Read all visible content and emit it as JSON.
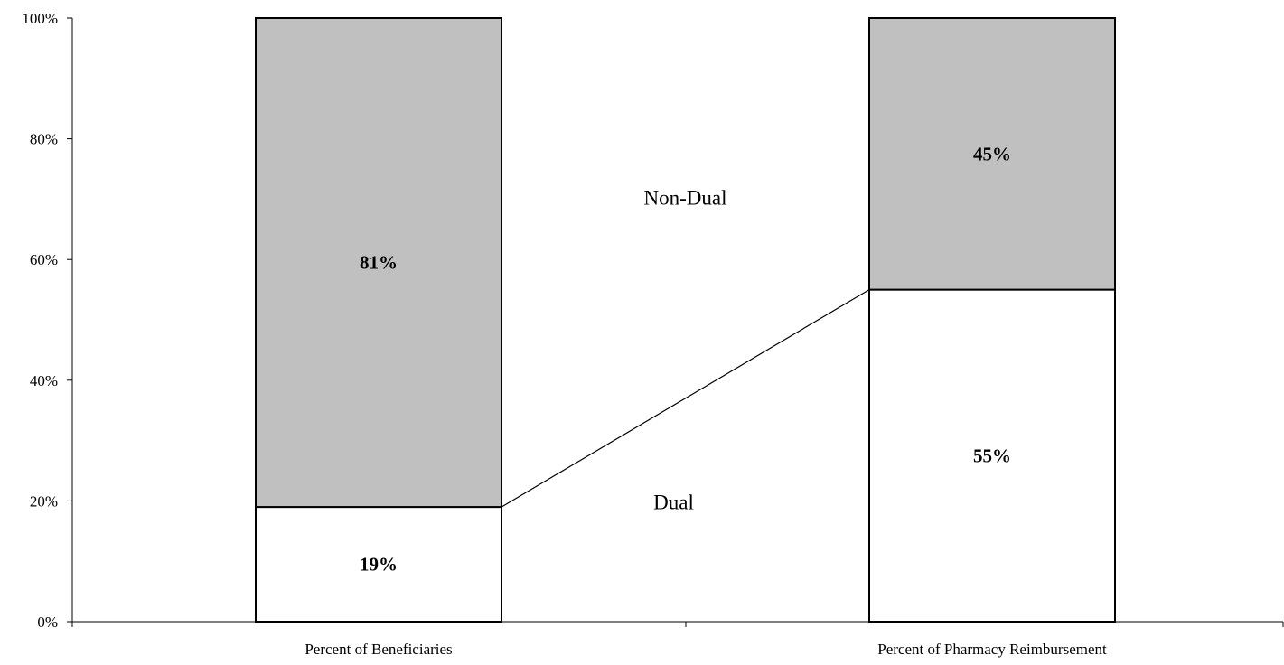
{
  "chart_data": {
    "type": "bar",
    "stacked": true,
    "categories": [
      "Percent of Beneficiaries",
      "Percent of Pharmacy Reimbursement"
    ],
    "series": [
      {
        "name": "Dual",
        "values": [
          19,
          55
        ],
        "labels": [
          "19%",
          "55%"
        ],
        "color": "#ffffff"
      },
      {
        "name": "Non-Dual",
        "values": [
          81,
          45
        ],
        "labels": [
          "81%",
          "45%"
        ],
        "color": "#c0c0c0"
      }
    ],
    "ylim": [
      0,
      100
    ],
    "yticks": [
      0,
      20,
      40,
      60,
      80,
      100
    ],
    "ytick_labels": [
      "0%",
      "20%",
      "40%",
      "60%",
      "80%",
      "100%"
    ],
    "grid": false,
    "connector_line": {
      "from_category": 0,
      "to_category": 1,
      "at_series_top": "Dual"
    },
    "region_labels": {
      "upper": "Non-Dual",
      "lower": "Dual"
    },
    "title": "",
    "xlabel": "",
    "ylabel": ""
  }
}
